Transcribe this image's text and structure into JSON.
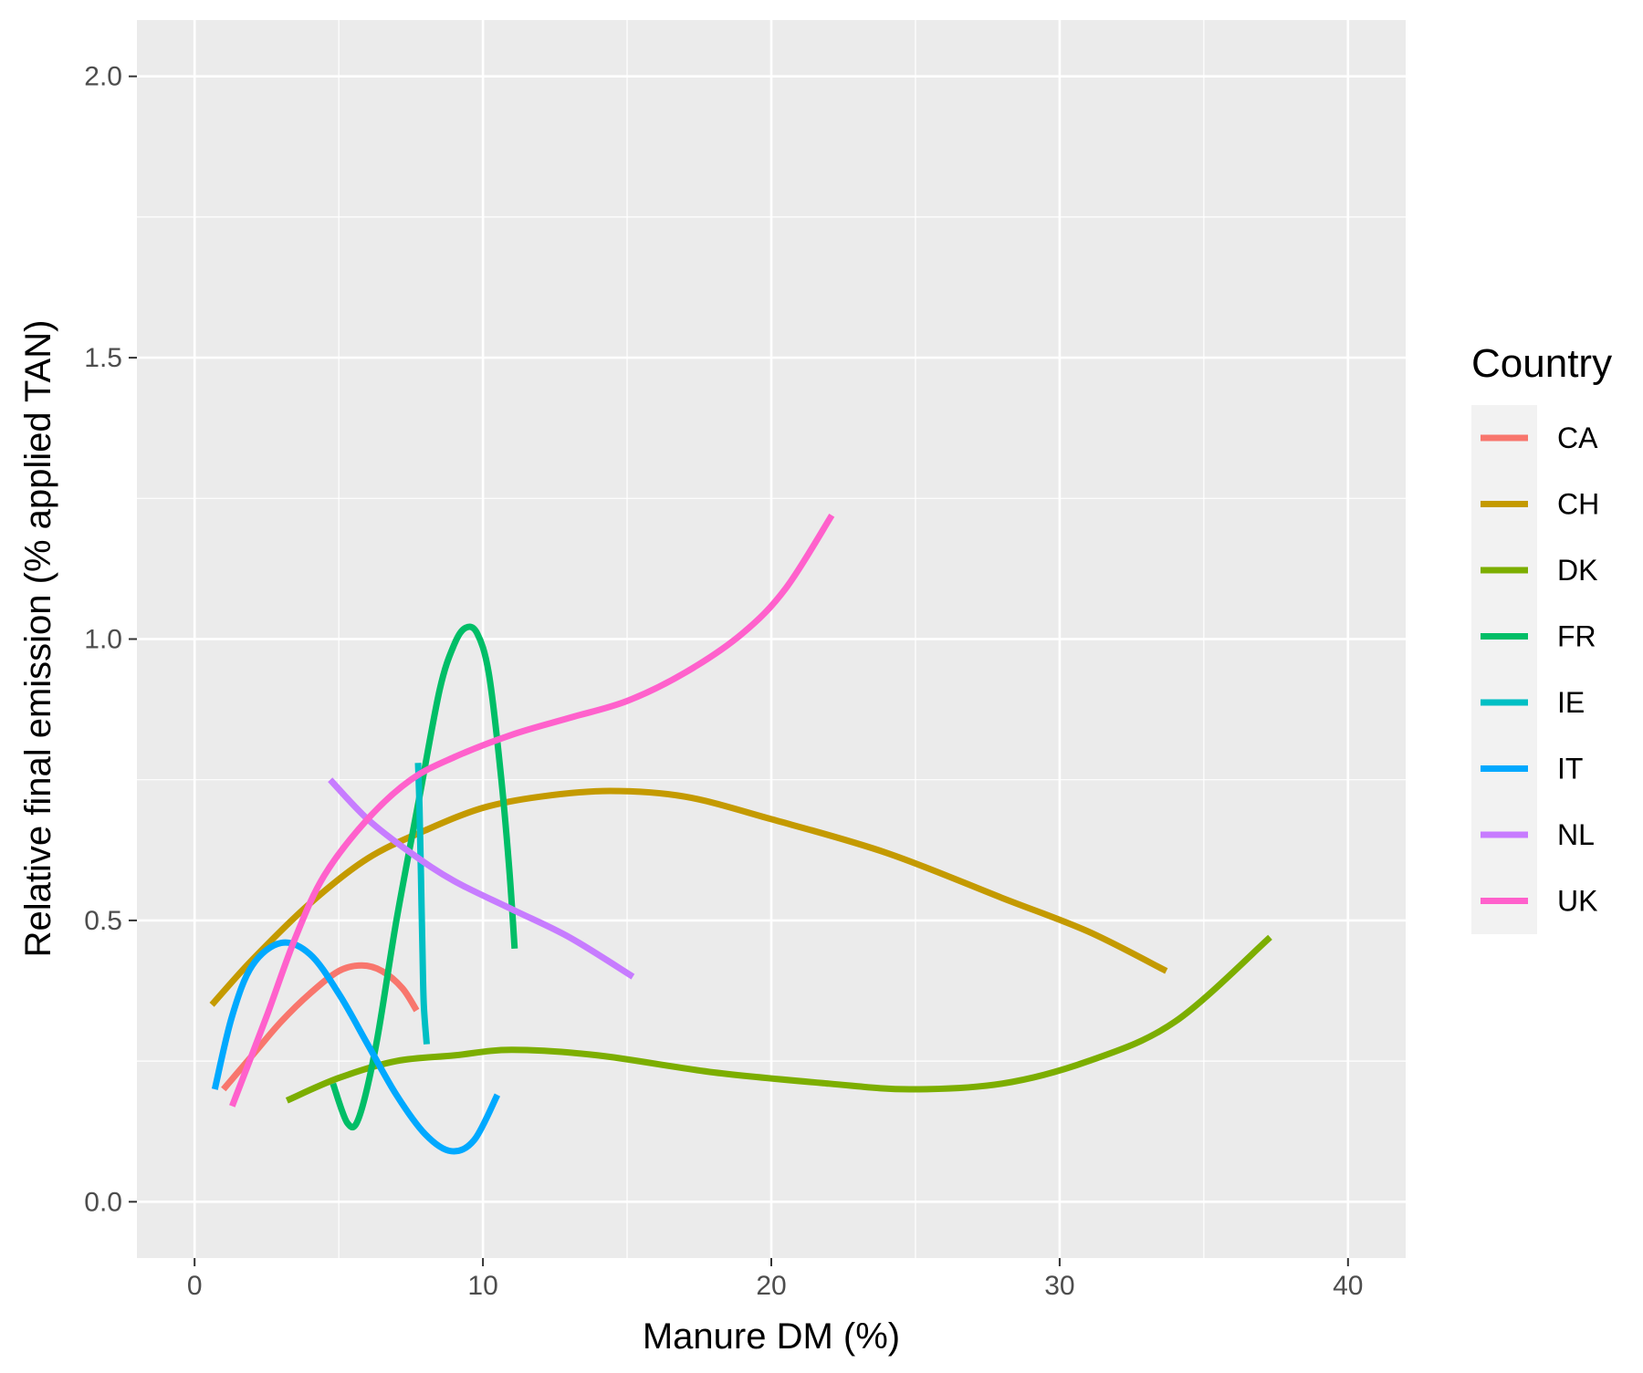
{
  "chart_data": {
    "type": "line",
    "title": "",
    "xlabel": "Manure DM (%)",
    "ylabel": "Relative final emission (% applied TAN)",
    "xlim": [
      -2,
      42
    ],
    "ylim": [
      -0.1,
      2.1
    ],
    "x_ticks": [
      0,
      10,
      20,
      30,
      40
    ],
    "x_tick_labels": [
      "0",
      "10",
      "20",
      "30",
      "40"
    ],
    "y_ticks": [
      0,
      0.5,
      1.0,
      1.5,
      2.0
    ],
    "y_tick_labels": [
      "0.0",
      "0.5",
      "1.0",
      "1.5",
      "2.0"
    ],
    "grid": true,
    "legend_title": "Country",
    "legend_position": "right",
    "series": [
      {
        "name": "CA",
        "color": "#F8766D",
        "points": [
          [
            1.0,
            0.2
          ],
          [
            2.0,
            0.26
          ],
          [
            3.0,
            0.32
          ],
          [
            4.0,
            0.37
          ],
          [
            5.0,
            0.41
          ],
          [
            5.8,
            0.42
          ],
          [
            6.5,
            0.41
          ],
          [
            7.2,
            0.38
          ],
          [
            7.7,
            0.34
          ]
        ]
      },
      {
        "name": "CH",
        "color": "#C49A00",
        "points": [
          [
            0.6,
            0.35
          ],
          [
            2,
            0.43
          ],
          [
            4,
            0.53
          ],
          [
            6,
            0.61
          ],
          [
            8,
            0.66
          ],
          [
            10,
            0.7
          ],
          [
            12,
            0.72
          ],
          [
            14.4,
            0.73
          ],
          [
            17,
            0.72
          ],
          [
            20,
            0.68
          ],
          [
            24,
            0.62
          ],
          [
            28,
            0.54
          ],
          [
            31,
            0.48
          ],
          [
            33.7,
            0.41
          ]
        ]
      },
      {
        "name": "DK",
        "color": "#7CAE00",
        "points": [
          [
            3.2,
            0.18
          ],
          [
            5,
            0.22
          ],
          [
            7,
            0.25
          ],
          [
            9,
            0.26
          ],
          [
            11,
            0.27
          ],
          [
            14,
            0.26
          ],
          [
            18,
            0.23
          ],
          [
            22,
            0.21
          ],
          [
            24.8,
            0.2
          ],
          [
            28,
            0.21
          ],
          [
            31,
            0.25
          ],
          [
            34,
            0.32
          ],
          [
            37.3,
            0.47
          ]
        ]
      },
      {
        "name": "FR",
        "color": "#00BE67",
        "points": [
          [
            4.8,
            0.21
          ],
          [
            5.3,
            0.14
          ],
          [
            5.7,
            0.15
          ],
          [
            6.3,
            0.28
          ],
          [
            7.0,
            0.5
          ],
          [
            7.8,
            0.72
          ],
          [
            8.5,
            0.91
          ],
          [
            9.0,
            0.99
          ],
          [
            9.4,
            1.02
          ],
          [
            9.8,
            1.01
          ],
          [
            10.2,
            0.94
          ],
          [
            10.6,
            0.77
          ],
          [
            10.9,
            0.6
          ],
          [
            11.1,
            0.45
          ]
        ]
      },
      {
        "name": "IE",
        "color": "#00BFC4",
        "points": [
          [
            7.75,
            0.78
          ],
          [
            7.8,
            0.7
          ],
          [
            7.85,
            0.58
          ],
          [
            7.9,
            0.45
          ],
          [
            7.95,
            0.35
          ],
          [
            8.05,
            0.28
          ]
        ]
      },
      {
        "name": "IT",
        "color": "#00A9FF",
        "points": [
          [
            0.7,
            0.2
          ],
          [
            1.3,
            0.33
          ],
          [
            2.0,
            0.42
          ],
          [
            3.0,
            0.46
          ],
          [
            4.0,
            0.44
          ],
          [
            5.0,
            0.37
          ],
          [
            6.0,
            0.28
          ],
          [
            7.0,
            0.19
          ],
          [
            8.0,
            0.12
          ],
          [
            8.9,
            0.09
          ],
          [
            9.7,
            0.11
          ],
          [
            10.5,
            0.19
          ]
        ]
      },
      {
        "name": "NL",
        "color": "#C77CFF",
        "points": [
          [
            4.7,
            0.75
          ],
          [
            6,
            0.68
          ],
          [
            7.5,
            0.62
          ],
          [
            9,
            0.57
          ],
          [
            11,
            0.52
          ],
          [
            13,
            0.47
          ],
          [
            15.2,
            0.4
          ]
        ]
      },
      {
        "name": "UK",
        "color": "#FF61CC",
        "points": [
          [
            1.3,
            0.17
          ],
          [
            2.5,
            0.33
          ],
          [
            3.5,
            0.47
          ],
          [
            4.5,
            0.58
          ],
          [
            6,
            0.68
          ],
          [
            7.5,
            0.75
          ],
          [
            9,
            0.79
          ],
          [
            11,
            0.83
          ],
          [
            13,
            0.86
          ],
          [
            15,
            0.89
          ],
          [
            17,
            0.94
          ],
          [
            19,
            1.01
          ],
          [
            20.5,
            1.09
          ],
          [
            22.1,
            1.22
          ]
        ]
      }
    ]
  }
}
